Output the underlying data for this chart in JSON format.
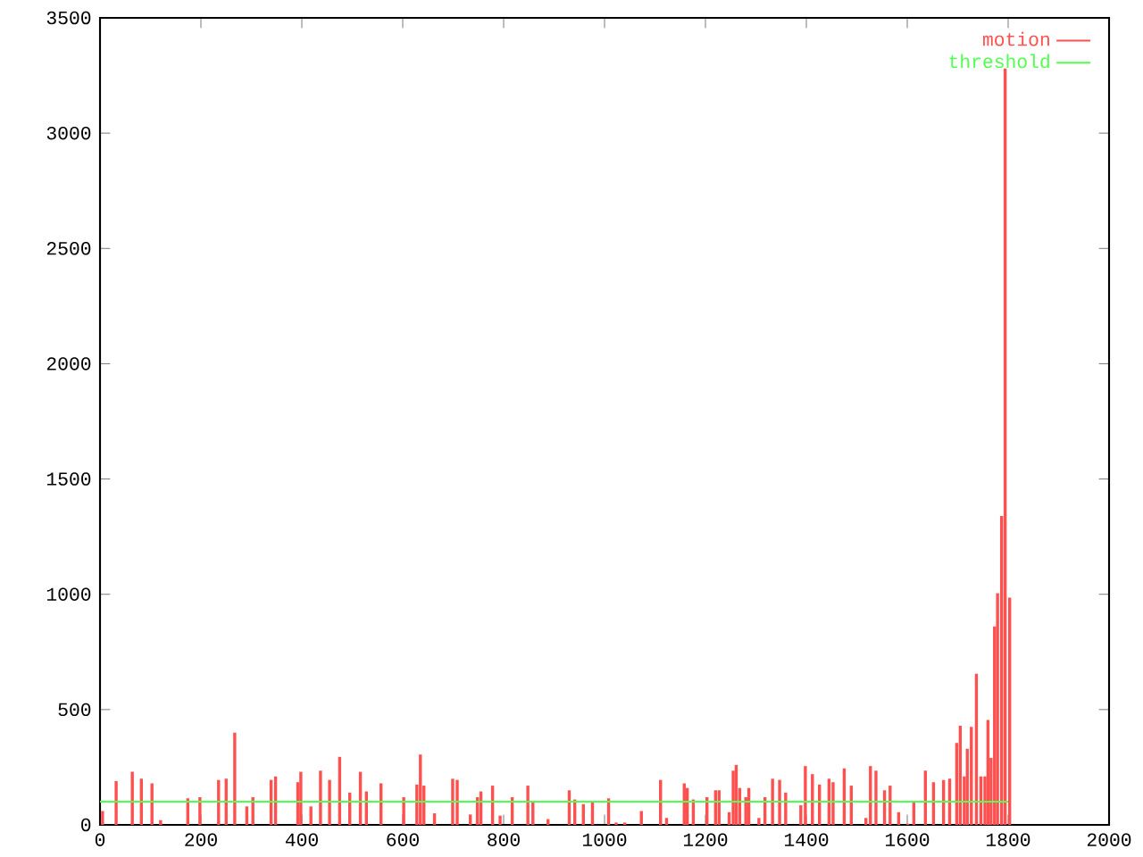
{
  "chart_data": {
    "type": "bar",
    "xlim": [
      0,
      2000
    ],
    "ylim": [
      0,
      3500
    ],
    "xticks": [
      0,
      200,
      400,
      600,
      800,
      1000,
      1200,
      1400,
      1600,
      1800,
      2000
    ],
    "yticks": [
      0,
      500,
      1000,
      1500,
      2000,
      2500,
      3000,
      3500
    ],
    "legend": "top right",
    "grid": false,
    "series": [
      {
        "name": "motion",
        "color": "#ff5050",
        "x": [
          5,
          32,
          64,
          82,
          103,
          120,
          174,
          198,
          235,
          250,
          267,
          291,
          303,
          339,
          348,
          392,
          398,
          418,
          437,
          455,
          475,
          495,
          516,
          528,
          557,
          602,
          628,
          635,
          642,
          663,
          699,
          708,
          734,
          748,
          755,
          778,
          793,
          817,
          848,
          858,
          888,
          930,
          941,
          958,
          976,
          1008,
          1023,
          1040,
          1073,
          1111,
          1123,
          1158,
          1164,
          1176,
          1203,
          1220,
          1227,
          1247,
          1255,
          1261,
          1268,
          1280,
          1286,
          1306,
          1318,
          1333,
          1347,
          1359,
          1389,
          1398,
          1412,
          1426,
          1445,
          1453,
          1475,
          1489,
          1518,
          1527,
          1538,
          1555,
          1566,
          1583,
          1601,
          1613,
          1636,
          1652,
          1672,
          1684,
          1698,
          1705,
          1713,
          1719,
          1727,
          1737,
          1746,
          1754,
          1760,
          1766,
          1773,
          1779,
          1787,
          1794,
          1803
        ],
        "values": [
          60,
          190,
          230,
          200,
          180,
          20,
          115,
          120,
          195,
          200,
          400,
          80,
          120,
          195,
          210,
          185,
          230,
          80,
          235,
          195,
          295,
          140,
          230,
          145,
          180,
          120,
          175,
          305,
          170,
          50,
          200,
          195,
          45,
          120,
          145,
          170,
          40,
          120,
          170,
          100,
          25,
          150,
          110,
          90,
          100,
          115,
          10,
          10,
          60,
          195,
          30,
          180,
          160,
          110,
          120,
          150,
          150,
          55,
          235,
          260,
          160,
          120,
          160,
          30,
          120,
          200,
          195,
          140,
          85,
          255,
          220,
          175,
          200,
          185,
          245,
          170,
          30,
          255,
          235,
          150,
          170,
          55,
          5,
          100,
          235,
          185,
          195,
          200,
          355,
          430,
          210,
          330,
          425,
          655,
          210,
          210,
          455,
          290,
          860,
          1005,
          1340,
          3280,
          985
        ]
      },
      {
        "name": "threshold",
        "color": "#50ff50",
        "type": "line",
        "x": [
          0,
          1800
        ],
        "values": [
          100,
          100
        ]
      }
    ]
  }
}
